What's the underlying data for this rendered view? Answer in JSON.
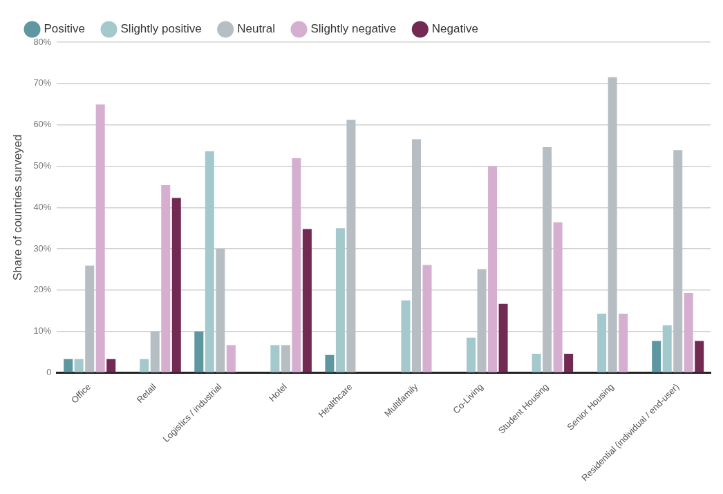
{
  "chart_data": {
    "type": "bar",
    "ylabel": "Share of countries surveyed",
    "categories": [
      "Office",
      "Retail",
      "Logistics / industrial",
      "Hotel",
      "Healthcare",
      "Multifamily",
      "Co-Living",
      "Student Housing",
      "Senior Housing",
      "Residential (individual / end-user)"
    ],
    "series": [
      {
        "name": "Positive",
        "color": "#5e97a0",
        "values": [
          3.3,
          0,
          10,
          0,
          4.3,
          0,
          0,
          0,
          0,
          7.7
        ]
      },
      {
        "name": "Slightly positive",
        "color": "#a3c9cd",
        "values": [
          3.3,
          3.3,
          53.6,
          6.7,
          35,
          17.5,
          8.5,
          4.6,
          14.3,
          11.5
        ]
      },
      {
        "name": "Neutral",
        "color": "#b7bec3",
        "values": [
          25.9,
          10,
          30,
          6.7,
          61.2,
          56.5,
          25.1,
          54.6,
          71.5,
          53.9
        ]
      },
      {
        "name": "Slightly negative",
        "color": "#d6afd0",
        "values": [
          64.9,
          45.4,
          6.7,
          51.9,
          0,
          26.1,
          50,
          36.4,
          14.3,
          19.3
        ]
      },
      {
        "name": "Negative",
        "color": "#722a52",
        "values": [
          3.3,
          42.3,
          0,
          34.8,
          0,
          0,
          16.7,
          4.6,
          0,
          7.7
        ]
      }
    ],
    "ylim": [
      0,
      80
    ],
    "yticks": [
      {
        "value": 0,
        "label": "0"
      },
      {
        "value": 10,
        "label": "10%"
      },
      {
        "value": 20,
        "label": "20%"
      },
      {
        "value": 30,
        "label": "30%"
      },
      {
        "value": 40,
        "label": "40%"
      },
      {
        "value": 50,
        "label": "50%"
      },
      {
        "value": 60,
        "label": "60%"
      },
      {
        "value": 70,
        "label": "70%"
      },
      {
        "value": 80,
        "label": "80%"
      }
    ],
    "grid": "y",
    "legend": "top"
  }
}
